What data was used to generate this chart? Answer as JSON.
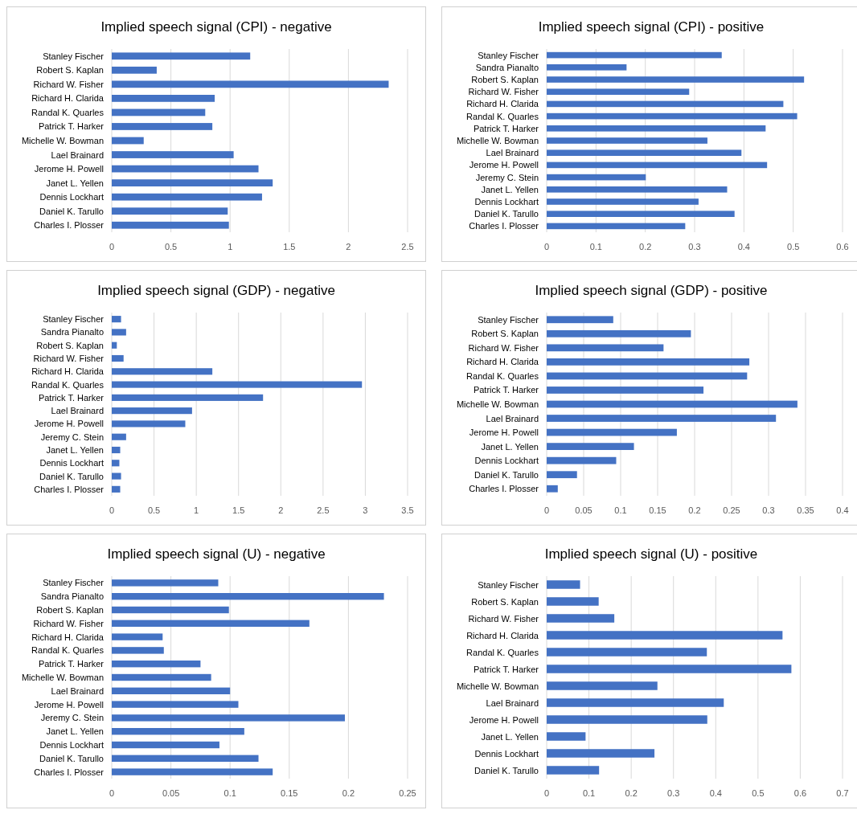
{
  "chart_data": [
    {
      "type": "bar",
      "orientation": "horizontal",
      "title": "Implied speech signal (CPI) - negative",
      "categories": [
        "Stanley Fischer",
        "Robert S. Kaplan",
        "Richard W. Fisher",
        "Richard H. Clarida",
        "Randal K. Quarles",
        "Patrick T. Harker",
        "Michelle W. Bowman",
        "Lael Brainard",
        "Jerome H. Powell",
        "Janet L. Yellen",
        "Dennis Lockhart",
        "Daniel K. Tarullo",
        "Charles I. Plosser"
      ],
      "values": [
        1.17,
        0.38,
        2.34,
        0.87,
        0.79,
        0.85,
        0.27,
        1.03,
        1.24,
        1.36,
        1.27,
        0.98,
        0.99
      ],
      "color": "#4472c4",
      "xlim": [
        0,
        2.5
      ],
      "xticks": [
        0,
        0.5,
        1,
        1.5,
        2,
        2.5
      ],
      "grid": "x"
    },
    {
      "type": "bar",
      "orientation": "horizontal",
      "title": "Implied speech signal (CPI) - positive",
      "categories": [
        "Stanley Fischer",
        "Sandra Pianalto",
        "Robert S. Kaplan",
        "Richard W. Fisher",
        "Richard H. Clarida",
        "Randal K. Quarles",
        "Patrick T. Harker",
        "Michelle W. Bowman",
        "Lael Brainard",
        "Jerome H. Powell",
        "Jeremy C. Stein",
        "Janet L. Yellen",
        "Dennis Lockhart",
        "Daniel K. Tarullo",
        "Charles I. Plosser"
      ],
      "values": [
        0.355,
        0.162,
        0.522,
        0.289,
        0.48,
        0.508,
        0.444,
        0.326,
        0.395,
        0.447,
        0.201,
        0.366,
        0.308,
        0.381,
        0.281
      ],
      "color": "#4472c4",
      "xlim": [
        0,
        0.6
      ],
      "xticks": [
        0,
        0.1,
        0.2,
        0.3,
        0.4,
        0.5,
        0.6
      ],
      "grid": "x"
    },
    {
      "type": "bar",
      "orientation": "horizontal",
      "title": "Implied speech signal (GDP) - negative",
      "categories": [
        "Stanley Fischer",
        "Sandra Pianalto",
        "Robert S. Kaplan",
        "Richard W. Fisher",
        "Richard H. Clarida",
        "Randal K. Quarles",
        "Patrick T. Harker",
        "Lael Brainard",
        "Jerome H. Powell",
        "Jeremy C. Stein",
        "Janet L. Yellen",
        "Dennis Lockhart",
        "Daniel K. Tarullo",
        "Charles I. Plosser"
      ],
      "values": [
        0.11,
        0.17,
        0.06,
        0.14,
        1.19,
        2.96,
        1.79,
        0.95,
        0.87,
        0.17,
        0.1,
        0.09,
        0.11,
        0.1
      ],
      "color": "#4472c4",
      "xlim": [
        0,
        3.5
      ],
      "xticks": [
        0,
        0.5,
        1,
        1.5,
        2,
        2.5,
        3,
        3.5
      ],
      "grid": "x"
    },
    {
      "type": "bar",
      "orientation": "horizontal",
      "title": "Implied speech signal (GDP) - positive",
      "categories": [
        "Stanley Fischer",
        "Robert S. Kaplan",
        "Richard W. Fisher",
        "Richard H. Clarida",
        "Randal K. Quarles",
        "Patrick T. Harker",
        "Michelle W. Bowman",
        "Lael Brainard",
        "Jerome H. Powell",
        "Janet L. Yellen",
        "Dennis Lockhart",
        "Daniel K. Tarullo",
        "Charles I. Plosser"
      ],
      "values": [
        0.09,
        0.195,
        0.158,
        0.274,
        0.271,
        0.212,
        0.339,
        0.31,
        0.176,
        0.118,
        0.094,
        0.041,
        0.015
      ],
      "color": "#4472c4",
      "xlim": [
        0,
        0.4
      ],
      "xticks": [
        0,
        0.05,
        0.1,
        0.15,
        0.2,
        0.25,
        0.3,
        0.35,
        0.4
      ],
      "grid": "x"
    },
    {
      "type": "bar",
      "orientation": "horizontal",
      "title": "Implied speech signal (U) - negative",
      "categories": [
        "Stanley Fischer",
        "Sandra Pianalto",
        "Robert S. Kaplan",
        "Richard W. Fisher",
        "Richard H. Clarida",
        "Randal K. Quarles",
        "Patrick T. Harker",
        "Michelle W. Bowman",
        "Lael Brainard",
        "Jerome H. Powell",
        "Jeremy C. Stein",
        "Janet L. Yellen",
        "Dennis Lockhart",
        "Daniel K. Tarullo",
        "Charles I. Plosser"
      ],
      "values": [
        0.09,
        0.23,
        0.099,
        0.167,
        0.043,
        0.044,
        0.075,
        0.084,
        0.1,
        0.107,
        0.197,
        0.112,
        0.091,
        0.124,
        0.136
      ],
      "color": "#4472c4",
      "xlim": [
        0,
        0.25
      ],
      "xticks": [
        0,
        0.05,
        0.1,
        0.15,
        0.2,
        0.25
      ],
      "grid": "x"
    },
    {
      "type": "bar",
      "orientation": "horizontal",
      "title": "Implied speech signal (U) - positive",
      "categories": [
        "Stanley Fischer",
        "Robert S. Kaplan",
        "Richard W. Fisher",
        "Richard H. Clarida",
        "Randal K. Quarles",
        "Patrick T. Harker",
        "Michelle W. Bowman",
        "Lael Brainard",
        "Jerome H. Powell",
        "Janet L. Yellen",
        "Dennis Lockhart",
        "Daniel K. Tarullo"
      ],
      "values": [
        0.079,
        0.123,
        0.16,
        0.558,
        0.379,
        0.579,
        0.262,
        0.419,
        0.38,
        0.092,
        0.255,
        0.124
      ],
      "color": "#4472c4",
      "xlim": [
        0,
        0.7
      ],
      "xticks": [
        0,
        0.1,
        0.2,
        0.3,
        0.4,
        0.5,
        0.6,
        0.7
      ],
      "grid": "x"
    }
  ]
}
